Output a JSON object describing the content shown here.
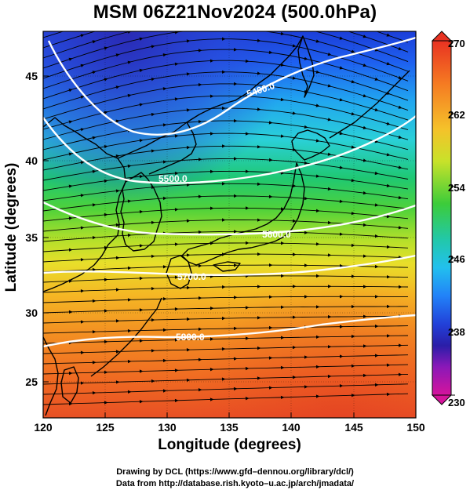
{
  "title": "MSM 06Z21Nov2024 (500.0hPa)",
  "x_axis": {
    "label": "Longitude (degrees)",
    "range": [
      120,
      150
    ],
    "ticks": [
      "120",
      "125",
      "130",
      "135",
      "140",
      "145",
      "150"
    ]
  },
  "y_axis": {
    "label": "Latitude  (degrees)",
    "range": [
      22.4,
      47.6
    ],
    "ticks": [
      "25",
      "30",
      "35",
      "40",
      "45"
    ]
  },
  "colorbar": {
    "range": [
      230,
      270
    ],
    "labels": [
      "270",
      "262",
      "254",
      "246",
      "238",
      "230"
    ],
    "colors": [
      "#d2009b",
      "#2222b8",
      "#1e64ff",
      "#25c6e8",
      "#1fc66a",
      "#8fe01c",
      "#e8e82a",
      "#f8a81e",
      "#f25020",
      "#dc2820"
    ]
  },
  "contours": [
    {
      "label": "5400.0"
    },
    {
      "label": "5500.0"
    },
    {
      "label": "5600.0"
    },
    {
      "label": "5700.0"
    },
    {
      "label": "5800.0"
    }
  ],
  "credits": [
    "Drawing by DCL (https://www.gfd–dennou.org/library/dcl/)",
    "Data from http://database.rish.kyoto–u.ac.jp/arch/jmadata/"
  ]
}
